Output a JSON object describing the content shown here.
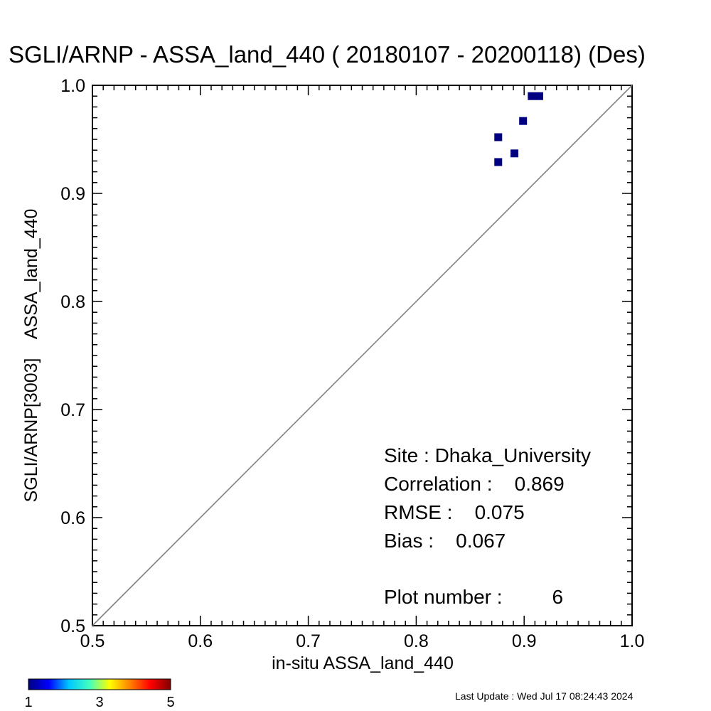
{
  "chart_data": {
    "type": "scatter",
    "title": "SGLI/ARNP - ASSA_land_440 ( 20180107 - 20200118) (Des)",
    "xlabel": "in-situ ASSA_land_440",
    "ylabel": "SGLI/ARNP[3003]    ASSA_land_440",
    "xlim": [
      0.5,
      1.0
    ],
    "ylim": [
      0.5,
      1.0
    ],
    "x_ticks": [
      "0.5",
      "0.6",
      "0.7",
      "0.8",
      "0.9",
      "1.0"
    ],
    "y_ticks": [
      "0.5",
      "0.6",
      "0.7",
      "0.8",
      "0.9",
      "1.0"
    ],
    "one_to_one_line": true,
    "grid": false,
    "points": [
      {
        "x": 0.876,
        "y": 0.952,
        "count": 1
      },
      {
        "x": 0.876,
        "y": 0.929,
        "count": 1
      },
      {
        "x": 0.891,
        "y": 0.937,
        "count": 1
      },
      {
        "x": 0.899,
        "y": 0.967,
        "count": 1
      },
      {
        "x": 0.907,
        "y": 0.99,
        "count": 1
      },
      {
        "x": 0.914,
        "y": 0.99,
        "count": 1
      }
    ],
    "stats": {
      "site": "Site : Dhaka_University",
      "correlation": "Correlation :    0.869",
      "rmse": "RMSE :    0.075",
      "bias": "Bias :    0.067",
      "plot_number": "Plot number :         6"
    },
    "colorbar": {
      "min": 1,
      "max": 5,
      "tick_labels": [
        "1",
        "3",
        "5"
      ],
      "colors": [
        "#000080",
        "#0000ff",
        "#00c8ff",
        "#40ffc0",
        "#ffff00",
        "#ff8000",
        "#ff0000",
        "#800000"
      ]
    },
    "marker_color": "#000080",
    "line_color": "#808080"
  },
  "footer": {
    "last_update": "Last Update : Wed Jul 17 08:24:43 2024"
  }
}
